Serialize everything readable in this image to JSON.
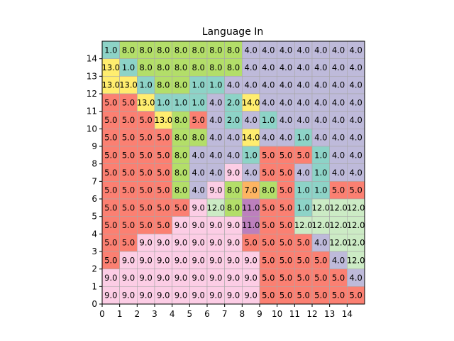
{
  "chart_data": {
    "type": "heatmap",
    "title": "Language In",
    "xlabel": "",
    "ylabel": "",
    "xlim": [
      0,
      15
    ],
    "ylim": [
      0,
      15
    ],
    "x_ticks": [
      "0",
      "1",
      "2",
      "3",
      "4",
      "5",
      "6",
      "7",
      "8",
      "9",
      "10",
      "11",
      "12",
      "13",
      "14"
    ],
    "y_ticks": [
      "0",
      "1",
      "2",
      "3",
      "4",
      "5",
      "6",
      "7",
      "8",
      "9",
      "10",
      "11",
      "12",
      "13",
      "14"
    ],
    "grid": true,
    "colors": {
      "1.0": "#8dd3c7",
      "2.0": "#8dd3c7",
      "4.0": "#bebada",
      "5.0": "#fb8072",
      "7.0": "#fdb462",
      "8.0": "#b3de69",
      "9.0": "#fccde5",
      "11.0": "#bc80bd",
      "12.0": "#ccebc5",
      "13.0": "#ffed6f",
      "14.0": "#ffed6f"
    },
    "rows_top_to_bottom": [
      [
        "1.0",
        "8.0",
        "8.0",
        "8.0",
        "8.0",
        "8.0",
        "8.0",
        "8.0",
        "4.0",
        "4.0",
        "4.0",
        "4.0",
        "4.0",
        "4.0",
        "4.0"
      ],
      [
        "13.0",
        "1.0",
        "8.0",
        "8.0",
        "8.0",
        "8.0",
        "8.0",
        "8.0",
        "4.0",
        "4.0",
        "4.0",
        "4.0",
        "4.0",
        "4.0",
        "4.0"
      ],
      [
        "13.0",
        "13.0",
        "1.0",
        "8.0",
        "8.0",
        "1.0",
        "1.0",
        "4.0",
        "4.0",
        "4.0",
        "4.0",
        "4.0",
        "4.0",
        "4.0",
        "4.0"
      ],
      [
        "5.0",
        "5.0",
        "13.0",
        "1.0",
        "1.0",
        "1.0",
        "4.0",
        "2.0",
        "14.0",
        "4.0",
        "4.0",
        "4.0",
        "4.0",
        "4.0",
        "4.0"
      ],
      [
        "5.0",
        "5.0",
        "5.0",
        "13.0",
        "8.0",
        "5.0",
        "4.0",
        "2.0",
        "4.0",
        "1.0",
        "4.0",
        "4.0",
        "4.0",
        "4.0",
        "4.0"
      ],
      [
        "5.0",
        "5.0",
        "5.0",
        "5.0",
        "8.0",
        "8.0",
        "4.0",
        "4.0",
        "14.0",
        "4.0",
        "4.0",
        "1.0",
        "4.0",
        "4.0",
        "4.0"
      ],
      [
        "5.0",
        "5.0",
        "5.0",
        "5.0",
        "8.0",
        "4.0",
        "4.0",
        "4.0",
        "1.0",
        "5.0",
        "5.0",
        "5.0",
        "1.0",
        "4.0",
        "4.0"
      ],
      [
        "5.0",
        "5.0",
        "5.0",
        "5.0",
        "8.0",
        "4.0",
        "4.0",
        "9.0",
        "4.0",
        "5.0",
        "5.0",
        "4.0",
        "1.0",
        "4.0",
        "4.0"
      ],
      [
        "5.0",
        "5.0",
        "5.0",
        "5.0",
        "8.0",
        "4.0",
        "9.0",
        "8.0",
        "7.0",
        "8.0",
        "5.0",
        "1.0",
        "1.0",
        "5.0",
        "5.0"
      ],
      [
        "5.0",
        "5.0",
        "5.0",
        "5.0",
        "5.0",
        "9.0",
        "12.0",
        "8.0",
        "11.0",
        "5.0",
        "5.0",
        "1.0",
        "12.0",
        "12.0",
        "12.0"
      ],
      [
        "5.0",
        "5.0",
        "5.0",
        "5.0",
        "9.0",
        "9.0",
        "9.0",
        "9.0",
        "11.0",
        "5.0",
        "5.0",
        "12.0",
        "12.0",
        "12.0",
        "12.0"
      ],
      [
        "5.0",
        "5.0",
        "9.0",
        "9.0",
        "9.0",
        "9.0",
        "9.0",
        "9.0",
        "5.0",
        "5.0",
        "5.0",
        "5.0",
        "4.0",
        "12.0",
        "12.0"
      ],
      [
        "5.0",
        "9.0",
        "9.0",
        "9.0",
        "9.0",
        "9.0",
        "9.0",
        "9.0",
        "9.0",
        "5.0",
        "5.0",
        "5.0",
        "5.0",
        "4.0",
        "12.0"
      ],
      [
        "9.0",
        "9.0",
        "9.0",
        "9.0",
        "9.0",
        "9.0",
        "9.0",
        "9.0",
        "9.0",
        "5.0",
        "5.0",
        "5.0",
        "5.0",
        "5.0",
        "4.0"
      ],
      [
        "9.0",
        "9.0",
        "9.0",
        "9.0",
        "9.0",
        "9.0",
        "9.0",
        "9.0",
        "9.0",
        "5.0",
        "5.0",
        "5.0",
        "5.0",
        "5.0",
        "5.0"
      ]
    ]
  }
}
